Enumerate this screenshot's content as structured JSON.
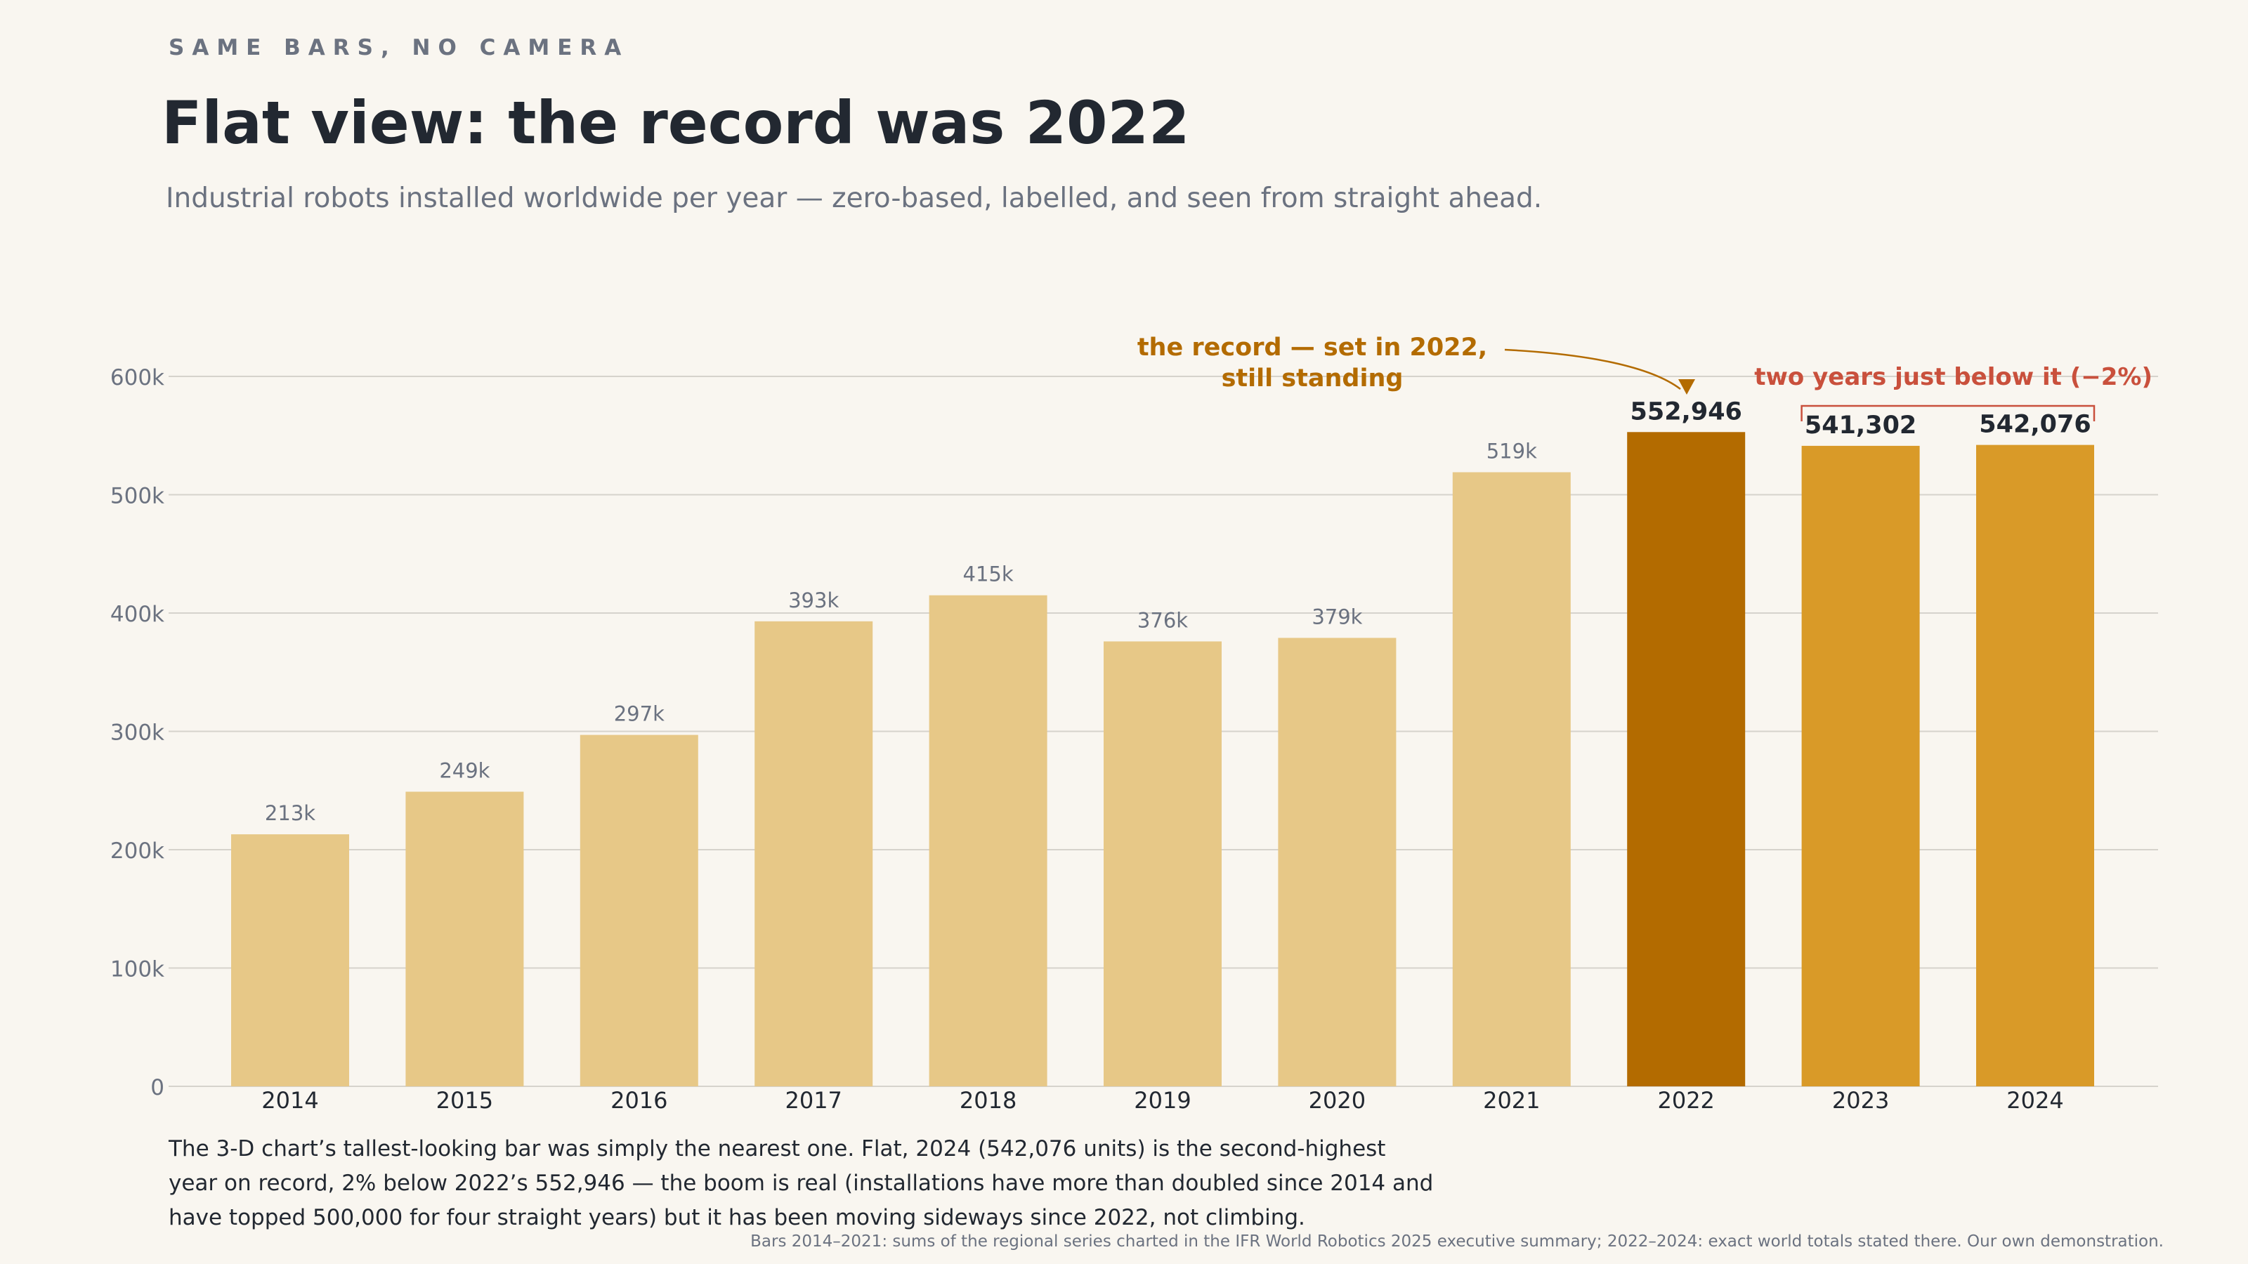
{
  "header": {
    "kicker": "SAME BARS, NO CAMERA",
    "title": "Flat view: the record was 2022",
    "subtitle": "Industrial robots installed worldwide per year — zero-based, labelled, and seen from straight ahead."
  },
  "chart_data": {
    "type": "bar",
    "categories": [
      "2014",
      "2015",
      "2016",
      "2017",
      "2018",
      "2019",
      "2020",
      "2021",
      "2022",
      "2023",
      "2024"
    ],
    "values": [
      213000,
      249000,
      297000,
      393000,
      415000,
      376000,
      379000,
      519000,
      552946,
      541302,
      542076
    ],
    "value_labels": [
      "213k",
      "249k",
      "297k",
      "393k",
      "415k",
      "376k",
      "379k",
      "519k",
      "552,946",
      "541,302",
      "542,076"
    ],
    "ylim": [
      0,
      600000
    ],
    "yticks": [
      0,
      100000,
      200000,
      300000,
      400000,
      500000,
      600000
    ],
    "ytick_labels": [
      "0",
      "100k",
      "200k",
      "300k",
      "400k",
      "500k",
      "600k"
    ],
    "grid": true,
    "colors": {
      "base": "#e7c887",
      "record": "#b36b00",
      "recent": "#d99a28",
      "bracket": "#c9503c",
      "grid": "#d6d3cc",
      "muted_text": "#6b7280",
      "dark_text": "#222831"
    },
    "annotations": {
      "record_line1": "the record — set in 2022,",
      "record_line2": "still standing",
      "bracket_label": "two years just below it (−2%)"
    }
  },
  "footer": {
    "takeaway_line1": "The 3-D chart’s tallest-looking bar was simply the nearest one. Flat, 2024 (542,076 units) is the second-highest",
    "takeaway_line2": "year on record, 2% below 2022’s 552,946 — the boom is real (installations have more than doubled since 2014 and",
    "takeaway_line3": "have topped 500,000 for four straight years) but it has been moving sideways since 2022, not climbing.",
    "source": "Bars 2014–2021: sums of the regional series charted in the IFR World Robotics 2025 executive summary; 2022–2024: exact world totals stated there. Our own demonstration."
  }
}
